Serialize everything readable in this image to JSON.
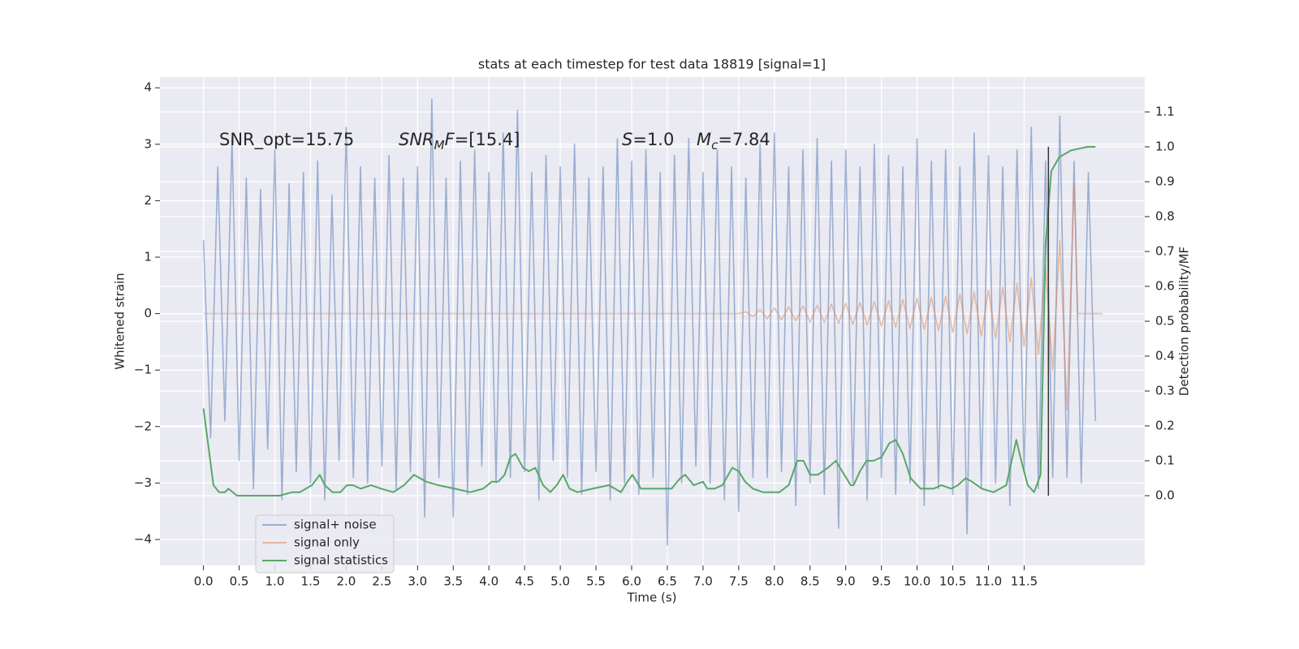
{
  "chart_data": {
    "type": "line",
    "title": "stats at each timestep for test data 18819 [signal=1]",
    "x_label": "Time (s)",
    "y_label": "Whitened strain",
    "y2_label": "Detection probability/MF",
    "background": "#eaeaf2",
    "grid": true,
    "legend": "lower left",
    "xlim": [
      -0.61,
      13.19
    ],
    "ylim": [
      -4.46,
      4.19
    ],
    "y2lim": [
      -0.2,
      1.2
    ],
    "xticks": [
      {
        "value": 0,
        "label": "0.0"
      },
      0.5,
      {
        "value": 1,
        "label": "1.0"
      },
      1.5,
      {
        "value": 2,
        "label": "2.0"
      },
      2.5,
      {
        "value": 3,
        "label": "3.0"
      },
      3.5,
      {
        "value": 4,
        "label": "4.0"
      },
      4.5,
      {
        "value": 5,
        "label": "5.0"
      },
      5.5,
      {
        "value": 6,
        "label": "6.0"
      },
      6.5,
      {
        "value": 7,
        "label": "7.0"
      },
      7.5,
      {
        "value": 8,
        "label": "8.0"
      },
      8.5,
      {
        "value": 9,
        "label": "9.0"
      },
      9.5,
      {
        "value": 10,
        "label": "10.0"
      },
      10.5,
      {
        "value": 11,
        "label": "11.0"
      },
      11.5
    ],
    "yticks": [
      {
        "value": -4,
        "label": "−4"
      },
      {
        "value": -3,
        "label": "−3"
      },
      {
        "value": -2,
        "label": "−2"
      },
      {
        "value": -1,
        "label": "−1"
      },
      0,
      1,
      2,
      3,
      4
    ],
    "y2ticks": [
      {
        "value": 0,
        "label": "0.0"
      },
      0.1,
      0.2,
      0.3,
      0.4,
      0.5,
      0.6,
      0.7,
      0.8,
      0.9,
      {
        "value": 1,
        "label": "1.0"
      },
      1.1
    ],
    "annotations": [
      {
        "parts": [
          {
            "text": "SNR_opt=15.75",
            "style": "normal"
          }
        ]
      },
      {
        "parts": [
          {
            "text": "SNR",
            "style": "italic"
          },
          {
            "text": "M",
            "style": "italic-sub"
          },
          {
            "text": "F",
            "style": "italic"
          },
          {
            "text": "=[15.4]",
            "style": "normal"
          }
        ]
      },
      {
        "parts": [
          {
            "text": "S",
            "style": "italic"
          },
          {
            "text": "=1.0",
            "style": "normal"
          }
        ]
      },
      {
        "parts": [
          {
            "text": "M",
            "style": "italic"
          },
          {
            "text": "c",
            "style": "italic-sub"
          },
          {
            "text": "=7.84",
            "style": "normal"
          }
        ]
      }
    ],
    "vline": {
      "x": 11.84,
      "y2_from": 0,
      "y2_to": 1,
      "color": "#333333"
    },
    "series": [
      {
        "name": "signal+ noise",
        "color": "#4c72b0",
        "opacity": 0.5,
        "axis": "y",
        "x": [
          0.0,
          0.1,
          0.2,
          0.3,
          0.4,
          0.5,
          0.6,
          0.7,
          0.8,
          0.9,
          1.0,
          1.1,
          1.2,
          1.3,
          1.4,
          1.5,
          1.6,
          1.7,
          1.8,
          1.9,
          2.0,
          2.1,
          2.2,
          2.3,
          2.4,
          2.5,
          2.6,
          2.7,
          2.8,
          2.9,
          3.0,
          3.1,
          3.2,
          3.3,
          3.4,
          3.5,
          3.6,
          3.7,
          3.8,
          3.9,
          4.0,
          4.1,
          4.2,
          4.3,
          4.4,
          4.5,
          4.6,
          4.7,
          4.8,
          4.9,
          5.0,
          5.1,
          5.2,
          5.3,
          5.4,
          5.5,
          5.6,
          5.7,
          5.8,
          5.9,
          6.0,
          6.1,
          6.2,
          6.3,
          6.4,
          6.5,
          6.6,
          6.7,
          6.8,
          6.9,
          7.0,
          7.1,
          7.2,
          7.3,
          7.4,
          7.5,
          7.6,
          7.7,
          7.8,
          7.9,
          8.0,
          8.1,
          8.2,
          8.3,
          8.4,
          8.5,
          8.6,
          8.7,
          8.8,
          8.9,
          9.0,
          9.1,
          9.2,
          9.3,
          9.4,
          9.5,
          9.6,
          9.7,
          9.8,
          9.9,
          10.0,
          10.1,
          10.2,
          10.3,
          10.4,
          10.5,
          10.6,
          10.7,
          10.8,
          10.9,
          11.0,
          11.1,
          11.2,
          11.3,
          11.4,
          11.5,
          11.6,
          11.7,
          11.8,
          11.9,
          12.0,
          12.1,
          12.2,
          12.3,
          12.4,
          12.5
        ],
        "values": [
          1.3,
          -2.2,
          2.6,
          -1.9,
          3.1,
          -2.6,
          2.4,
          -3.1,
          2.2,
          -2.4,
          2.9,
          -3.3,
          2.3,
          -2.8,
          2.5,
          -3.0,
          2.7,
          -3.3,
          2.1,
          -2.6,
          3.3,
          -2.9,
          2.6,
          -3.0,
          2.4,
          -2.7,
          2.8,
          -3.1,
          2.4,
          -2.8,
          2.6,
          -3.6,
          3.8,
          -2.9,
          2.4,
          -3.6,
          2.7,
          -3.2,
          2.9,
          -2.7,
          2.5,
          -3.0,
          3.2,
          -2.9,
          3.6,
          -2.8,
          2.5,
          -3.3,
          2.8,
          -2.6,
          2.6,
          -2.9,
          3.0,
          -3.2,
          2.4,
          -2.8,
          2.6,
          -3.3,
          3.1,
          -3.0,
          2.7,
          -3.2,
          2.9,
          -2.9,
          2.5,
          -4.1,
          2.8,
          -3.0,
          3.1,
          -2.7,
          2.5,
          -3.0,
          2.9,
          -3.3,
          2.6,
          -3.5,
          2.4,
          -2.9,
          3.0,
          -2.9,
          3.2,
          -2.8,
          2.6,
          -3.4,
          2.9,
          -3.0,
          3.1,
          -3.2,
          2.7,
          -3.8,
          2.9,
          -3.0,
          2.6,
          -3.3,
          3.0,
          -2.9,
          2.8,
          -3.2,
          2.6,
          -3.0,
          3.1,
          -3.4,
          2.7,
          -3.1,
          2.9,
          -3.2,
          2.6,
          -3.9,
          3.2,
          -3.1,
          2.8,
          -3.0,
          2.6,
          -3.4,
          2.9,
          -2.8,
          3.3,
          -3.1,
          2.7,
          -2.9,
          3.5,
          -2.9,
          2.7,
          -3.0,
          2.5,
          -1.9
        ]
      },
      {
        "name": "signal only",
        "color": "#dd8452",
        "opacity": 0.5,
        "axis": "y",
        "x": [
          0.0,
          7.5,
          7.6,
          7.7,
          7.8,
          7.9,
          8.0,
          8.1,
          8.2,
          8.3,
          8.4,
          8.5,
          8.6,
          8.7,
          8.8,
          8.9,
          9.0,
          9.1,
          9.2,
          9.3,
          9.4,
          9.5,
          9.6,
          9.7,
          9.8,
          9.9,
          10.0,
          10.1,
          10.2,
          10.3,
          10.4,
          10.5,
          10.6,
          10.7,
          10.8,
          10.9,
          11.0,
          11.1,
          11.2,
          11.3,
          11.4,
          11.5,
          11.6,
          11.7,
          11.8,
          11.9,
          12.0,
          12.1,
          12.2,
          12.25,
          12.6
        ],
        "values": [
          0,
          0,
          0.03,
          -0.05,
          0.07,
          -0.09,
          0.1,
          -0.11,
          0.12,
          -0.13,
          0.14,
          -0.15,
          0.15,
          -0.16,
          0.17,
          -0.17,
          0.18,
          -0.19,
          0.2,
          -0.2,
          0.21,
          -0.22,
          0.23,
          -0.24,
          0.25,
          -0.26,
          0.27,
          -0.28,
          0.29,
          -0.3,
          0.31,
          -0.33,
          0.34,
          -0.36,
          0.38,
          -0.4,
          0.42,
          -0.44,
          0.47,
          -0.5,
          0.54,
          -0.58,
          0.64,
          -0.72,
          0.85,
          -1.0,
          1.3,
          -1.7,
          2.3,
          0,
          0
        ]
      },
      {
        "name": "signal statistics",
        "color": "#55a868",
        "opacity": 1,
        "axis": "y2",
        "x": [
          0.0,
          0.14,
          0.22,
          0.3,
          0.35,
          0.47,
          0.67,
          0.9,
          1.07,
          1.24,
          1.35,
          1.52,
          1.63,
          1.7,
          1.81,
          1.92,
          2.01,
          2.1,
          2.2,
          2.35,
          2.49,
          2.66,
          2.81,
          2.95,
          3.12,
          3.29,
          3.52,
          3.74,
          3.92,
          4.04,
          4.13,
          4.22,
          4.3,
          4.37,
          4.48,
          4.56,
          4.65,
          4.76,
          4.86,
          4.95,
          5.04,
          5.13,
          5.24,
          5.45,
          5.68,
          5.85,
          5.94,
          6.01,
          6.13,
          6.36,
          6.56,
          6.68,
          6.75,
          6.87,
          7.0,
          7.06,
          7.16,
          7.27,
          7.41,
          7.5,
          7.59,
          7.7,
          7.84,
          8.07,
          8.2,
          8.32,
          8.41,
          8.5,
          8.61,
          8.75,
          8.86,
          8.95,
          9.07,
          9.11,
          9.2,
          9.29,
          9.39,
          9.5,
          9.61,
          9.7,
          9.8,
          9.91,
          10.05,
          10.23,
          10.34,
          10.48,
          10.57,
          10.68,
          10.77,
          10.91,
          11.07,
          11.25,
          11.39,
          11.46,
          11.55,
          11.64,
          11.73,
          11.8,
          11.88,
          11.99,
          12.16,
          12.39,
          12.5
        ],
        "values": [
          0.25,
          0.03,
          0.01,
          0.01,
          0.02,
          0.0,
          0.0,
          0.0,
          0.0,
          0.01,
          0.01,
          0.03,
          0.06,
          0.03,
          0.01,
          0.01,
          0.03,
          0.03,
          0.02,
          0.03,
          0.02,
          0.01,
          0.03,
          0.06,
          0.04,
          0.03,
          0.02,
          0.01,
          0.02,
          0.04,
          0.04,
          0.06,
          0.11,
          0.12,
          0.08,
          0.07,
          0.08,
          0.03,
          0.01,
          0.03,
          0.06,
          0.02,
          0.01,
          0.02,
          0.03,
          0.01,
          0.04,
          0.06,
          0.02,
          0.02,
          0.02,
          0.05,
          0.06,
          0.03,
          0.04,
          0.02,
          0.02,
          0.03,
          0.08,
          0.07,
          0.04,
          0.02,
          0.01,
          0.01,
          0.03,
          0.1,
          0.1,
          0.06,
          0.06,
          0.08,
          0.1,
          0.07,
          0.03,
          0.03,
          0.07,
          0.1,
          0.1,
          0.11,
          0.15,
          0.16,
          0.12,
          0.05,
          0.02,
          0.02,
          0.03,
          0.02,
          0.03,
          0.05,
          0.04,
          0.02,
          0.01,
          0.03,
          0.16,
          0.1,
          0.03,
          0.01,
          0.06,
          0.72,
          0.93,
          0.97,
          0.99,
          1.0,
          1.0
        ]
      }
    ]
  }
}
